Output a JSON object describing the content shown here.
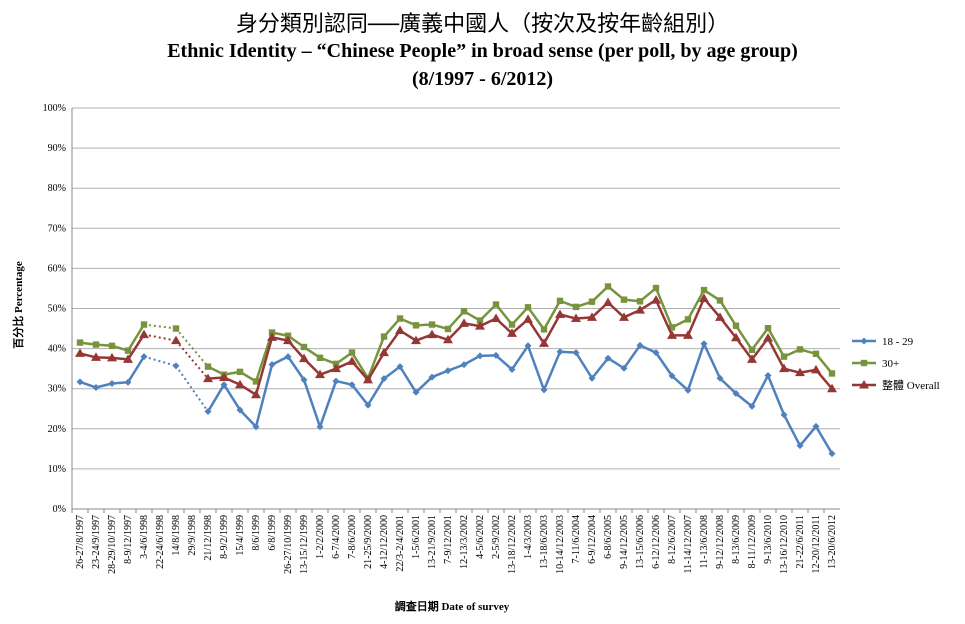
{
  "chart_data": {
    "type": "line",
    "title_zh": "身分類別認同──廣義中國人（按次及按年齡組別）",
    "title": "Ethnic Identity – “Chinese People” in broad sense (per poll, by age group)",
    "subtitle": "(8/1997 - 6/2012)",
    "xlabel": "調查日期 Date of survey",
    "ylabel": "百分比 Percentage",
    "ylim": [
      0,
      100
    ],
    "ytick_labels": [
      "0%",
      "10%",
      "20%",
      "30%",
      "40%",
      "50%",
      "60%",
      "70%",
      "80%",
      "90%",
      "100%"
    ],
    "grid": true,
    "legend_position": "right",
    "categories": [
      "26-27/8/1997",
      "23-24/9/1997",
      "28-29/10/1997",
      "8-9/12/1997",
      "3-4/6/1998",
      "22-24/6/1998",
      "14/8/1998",
      "29/9/1998",
      "21/12/1998",
      "8-9/2/1999",
      "15/4/1999",
      "8/6/1999",
      "6/8/1999",
      "26-27/10/1999",
      "13-15/12/1999",
      "1-2/2/2000",
      "6-7/4/2000",
      "7-8/6/2000",
      "21-25/9/2000",
      "4-12/12/2000",
      "22/3-2/4/2001",
      "1-5/6/2001",
      "13-21/9/2001",
      "7-9/12/2001",
      "12-13/3/2002",
      "4-5/6/2002",
      "2-5/9/2002",
      "13-18/12/2002",
      "1-4/3/2003",
      "13-18/6/2003",
      "10-14/12/2003",
      "7-11/6/2004",
      "6-9/12/2004",
      "6-8/6/2005",
      "9-14/12/2005",
      "13-15/6/2006",
      "6-12/12/2006",
      "8-12/6/2007",
      "11-14/12/2007",
      "11-13/6/2008",
      "9-12/12/2008",
      "8-13/6/2009",
      "8-11/12/2009",
      "9-13/6/2010",
      "13-16/12/2010",
      "21-22/6/2011",
      "12-20/12/2011",
      "13-20/6/2012"
    ],
    "series": [
      {
        "name": "18 - 29",
        "color": "#4f81bd",
        "marker": "diamond",
        "values": [
          31.7,
          30.3,
          31.3,
          31.6,
          38.0,
          null,
          35.7,
          null,
          24.3,
          31.0,
          24.7,
          20.5,
          36.0,
          38.0,
          32.2,
          20.5,
          31.9,
          31.0,
          25.9,
          32.5,
          35.5,
          29.1,
          32.9,
          34.5,
          36.0,
          38.2,
          38.3,
          34.8,
          40.7,
          29.7,
          39.2,
          39.0,
          32.6,
          37.6,
          35.1,
          40.8,
          39.0,
          33.2,
          29.6,
          41.2,
          32.6,
          28.8,
          25.6,
          33.3,
          23.5,
          15.8,
          20.6,
          13.8
        ]
      },
      {
        "name": "30+",
        "color": "#77933c",
        "marker": "square",
        "values": [
          41.5,
          41.0,
          40.7,
          39.5,
          46.0,
          null,
          45.0,
          null,
          35.5,
          33.5,
          34.2,
          31.8,
          44.0,
          43.2,
          40.4,
          37.7,
          36.2,
          39.0,
          32.6,
          43.0,
          47.5,
          45.8,
          46.0,
          44.9,
          49.3,
          47.0,
          51.0,
          46.0,
          50.3,
          44.8,
          51.9,
          50.4,
          51.7,
          55.5,
          52.2,
          51.8,
          55.1,
          45.3,
          47.3,
          54.6,
          52.0,
          45.7,
          39.7,
          45.1,
          38.0,
          39.8,
          38.7,
          33.8
        ]
      },
      {
        "name": "整體 Overall",
        "color": "#953735",
        "marker": "triangle",
        "values": [
          38.8,
          37.8,
          37.7,
          37.3,
          43.5,
          null,
          42.0,
          null,
          32.5,
          32.8,
          31.0,
          28.5,
          42.8,
          42.0,
          37.5,
          33.5,
          35.0,
          36.8,
          32.2,
          39.0,
          44.5,
          42.0,
          43.5,
          42.2,
          46.3,
          45.6,
          47.5,
          43.8,
          47.3,
          41.3,
          48.5,
          47.5,
          47.8,
          51.5,
          47.8,
          49.6,
          52.1,
          43.3,
          43.3,
          52.5,
          47.8,
          42.7,
          37.3,
          42.6,
          35.0,
          34.0,
          34.7,
          30.0
        ]
      }
    ],
    "dotted_segments": [
      [
        4,
        6
      ],
      [
        6,
        8
      ]
    ]
  }
}
